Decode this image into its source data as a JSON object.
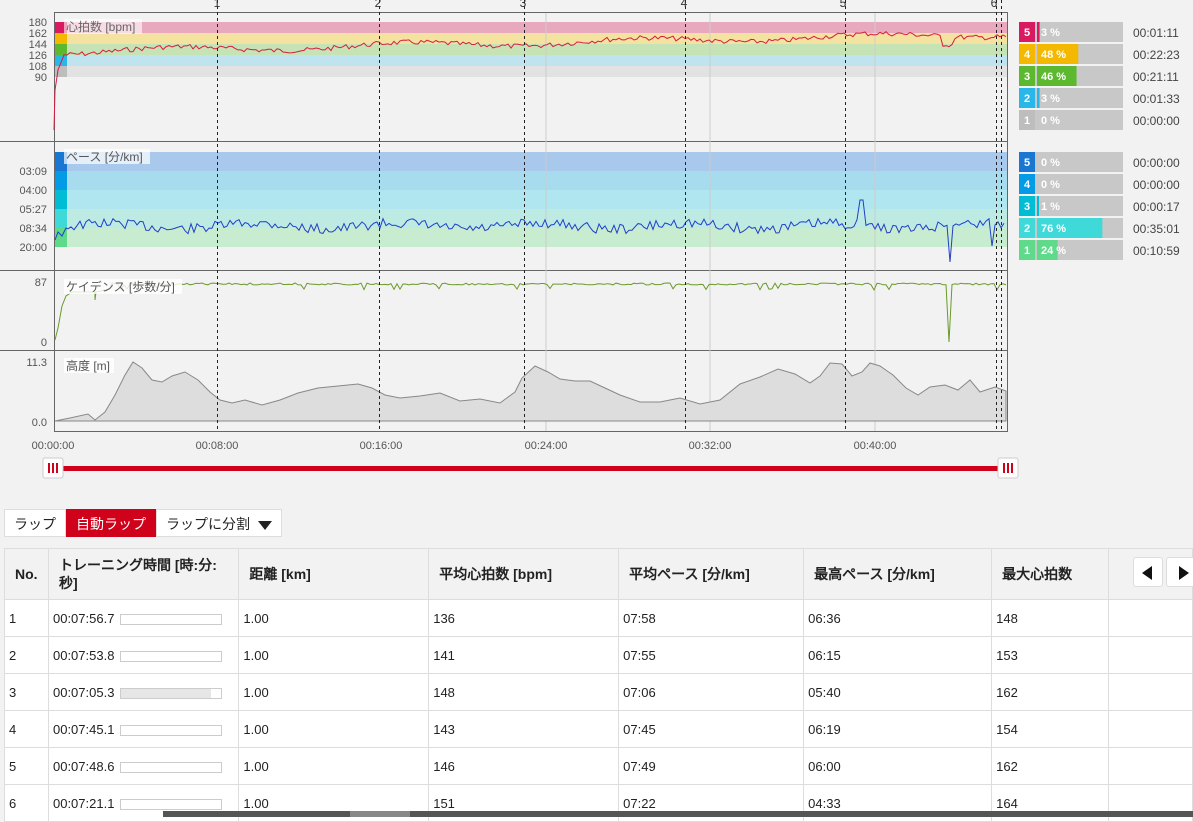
{
  "laps_header": {
    "markers": [
      "1",
      "2",
      "3",
      "4",
      "5",
      "6"
    ]
  },
  "time_axis": {
    "labels": [
      "00:00:00",
      "00:08:00",
      "00:16:00",
      "00:24:00",
      "00:32:00",
      "00:40:00"
    ]
  },
  "panels": {
    "hr": {
      "title": "心拍数 [bpm]",
      "ticks": [
        "180",
        "162",
        "144",
        "126",
        "108",
        "90"
      ]
    },
    "pace": {
      "title": "ペース [分/km]",
      "ticks": [
        "03:09",
        "04:00",
        "05:27",
        "08:34",
        "20:00"
      ]
    },
    "cadence": {
      "title": "ケイデンス [歩数/分]",
      "ticks": [
        "87",
        "0"
      ]
    },
    "altitude": {
      "title": "高度 [m]",
      "ticks": [
        "11.3",
        "0.0"
      ]
    }
  },
  "hr_zones": [
    {
      "zone": "5",
      "percent": "3 %",
      "time": "00:01:11",
      "color": "#d81b60",
      "fill": 0.03
    },
    {
      "zone": "4",
      "percent": "48 %",
      "time": "00:22:23",
      "color": "#f5b800",
      "fill": 0.48
    },
    {
      "zone": "3",
      "percent": "46 %",
      "time": "00:21:11",
      "color": "#5cb82e",
      "fill": 0.46
    },
    {
      "zone": "2",
      "percent": "3 %",
      "time": "00:01:33",
      "color": "#29b6e8",
      "fill": 0.03
    },
    {
      "zone": "1",
      "percent": "0 %",
      "time": "00:00:00",
      "color": "#bdbdbd",
      "fill": 0.0
    }
  ],
  "pace_zones": [
    {
      "zone": "5",
      "percent": "0 %",
      "time": "00:00:00",
      "color": "#1976d2",
      "fill": 0.0
    },
    {
      "zone": "4",
      "percent": "0 %",
      "time": "00:00:00",
      "color": "#039be5",
      "fill": 0.0
    },
    {
      "zone": "3",
      "percent": "1 %",
      "time": "00:00:17",
      "color": "#00bcd4",
      "fill": 0.01
    },
    {
      "zone": "2",
      "percent": "76 %",
      "time": "00:35:01",
      "color": "#3fd9d9",
      "fill": 0.76
    },
    {
      "zone": "1",
      "percent": "24 %",
      "time": "00:10:59",
      "color": "#5fd98a",
      "fill": 0.24
    }
  ],
  "tabs": {
    "laps": "ラップ",
    "auto_laps": "自動ラップ",
    "split": "ラップに分割"
  },
  "table": {
    "headers": [
      "No.",
      "トレーニング時間 [時:分:秒]",
      "距離 [km]",
      "平均心拍数 [bpm]",
      "平均ペース [分/km]",
      "最高ペース [分/km]",
      "最大心拍数"
    ],
    "rows": [
      {
        "no": "1",
        "time": "00:07:56.7",
        "fill": 0.0,
        "dist": "1.00",
        "avg_hr": "136",
        "avg_pace": "07:58",
        "max_pace": "06:36",
        "max_hr": "148"
      },
      {
        "no": "2",
        "time": "00:07:53.8",
        "fill": 0.0,
        "dist": "1.00",
        "avg_hr": "141",
        "avg_pace": "07:55",
        "max_pace": "06:15",
        "max_hr": "153"
      },
      {
        "no": "3",
        "time": "00:07:05.3",
        "fill": 0.9,
        "dist": "1.00",
        "avg_hr": "148",
        "avg_pace": "07:06",
        "max_pace": "05:40",
        "max_hr": "162"
      },
      {
        "no": "4",
        "time": "00:07:45.1",
        "fill": 0.0,
        "dist": "1.00",
        "avg_hr": "143",
        "avg_pace": "07:45",
        "max_pace": "06:19",
        "max_hr": "154"
      },
      {
        "no": "5",
        "time": "00:07:48.6",
        "fill": 0.0,
        "dist": "1.00",
        "avg_hr": "146",
        "avg_pace": "07:49",
        "max_pace": "06:00",
        "max_hr": "162"
      },
      {
        "no": "6",
        "time": "00:07:21.1",
        "fill": 0.0,
        "dist": "1.00",
        "avg_hr": "151",
        "avg_pace": "07:22",
        "max_pace": "04:33",
        "max_hr": "164"
      }
    ]
  },
  "colors": {
    "accent": "#d0021b",
    "hr_line": "#d81b40",
    "pace_line": "#1f3fc8",
    "cadence_line": "#6a9a2a",
    "altitude_fill": "#dddddd"
  }
}
